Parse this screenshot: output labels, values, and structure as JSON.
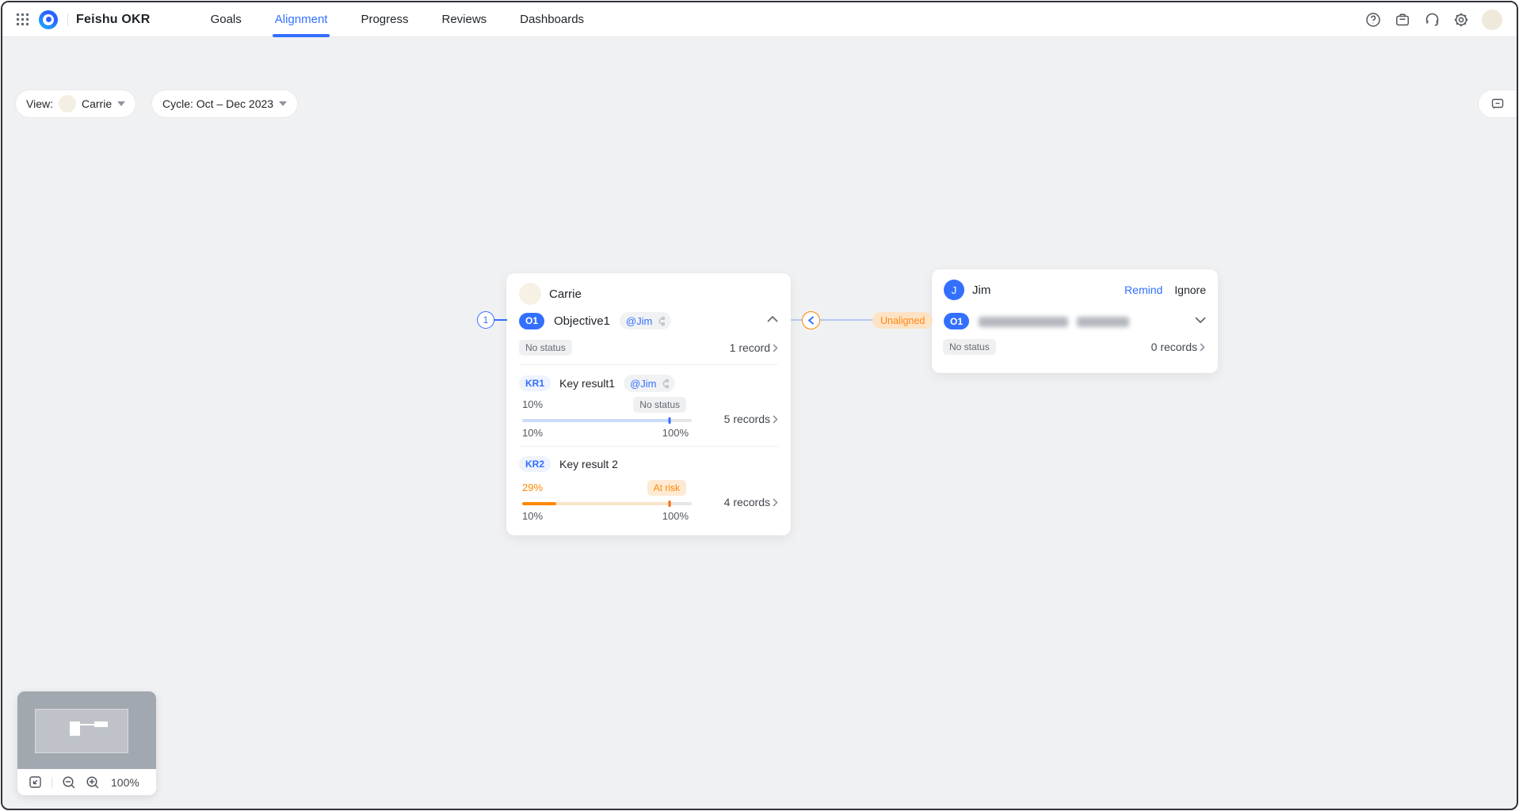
{
  "nav": {
    "app_title": "Feishu OKR",
    "tabs": [
      {
        "label": "Goals"
      },
      {
        "label": "Alignment"
      },
      {
        "label": "Progress"
      },
      {
        "label": "Reviews"
      },
      {
        "label": "Dashboards"
      }
    ],
    "right_icons": [
      "help-icon",
      "workbench-icon",
      "headset-icon",
      "settings-icon",
      "user-avatar"
    ]
  },
  "filter_bar": {
    "view_label": "View:",
    "view_value": "Carrie",
    "cycle_label": "Cycle: Oct – Dec 2023"
  },
  "carrie_card": {
    "owner": "Carrie",
    "objective": {
      "badge": "O1",
      "title": "Objective1",
      "assignee": "@Jim",
      "status": "No status",
      "records": "1 record",
      "connector_number": "1"
    },
    "kr1": {
      "badge": "KR1",
      "title": "Key result1",
      "assignee": "@Jim",
      "value": "10%",
      "status": "No status",
      "range_start": "10%",
      "range_end": "100%",
      "records": "5 records",
      "fill_pct": 0,
      "tick_pct": 87
    },
    "kr2": {
      "badge": "KR2",
      "title": "Key result 2",
      "value": "29%",
      "status": "At risk",
      "range_start": "10%",
      "range_end": "100%",
      "records": "4 records",
      "fill_pct": 20,
      "tick_pct": 87
    }
  },
  "jim_card": {
    "owner": "Jim",
    "avatar_initial": "J",
    "remind_label": "Remind",
    "ignore_label": "Ignore",
    "badge": "O1",
    "status": "No status",
    "records": "0 records"
  },
  "connector": {
    "label": "Unaligned"
  },
  "minimap": {
    "zoom_level": "100%"
  },
  "colors": {
    "accent_blue": "#3370ff",
    "warning_orange": "#ff8800",
    "canvas_bg": "#f0f1f3"
  }
}
